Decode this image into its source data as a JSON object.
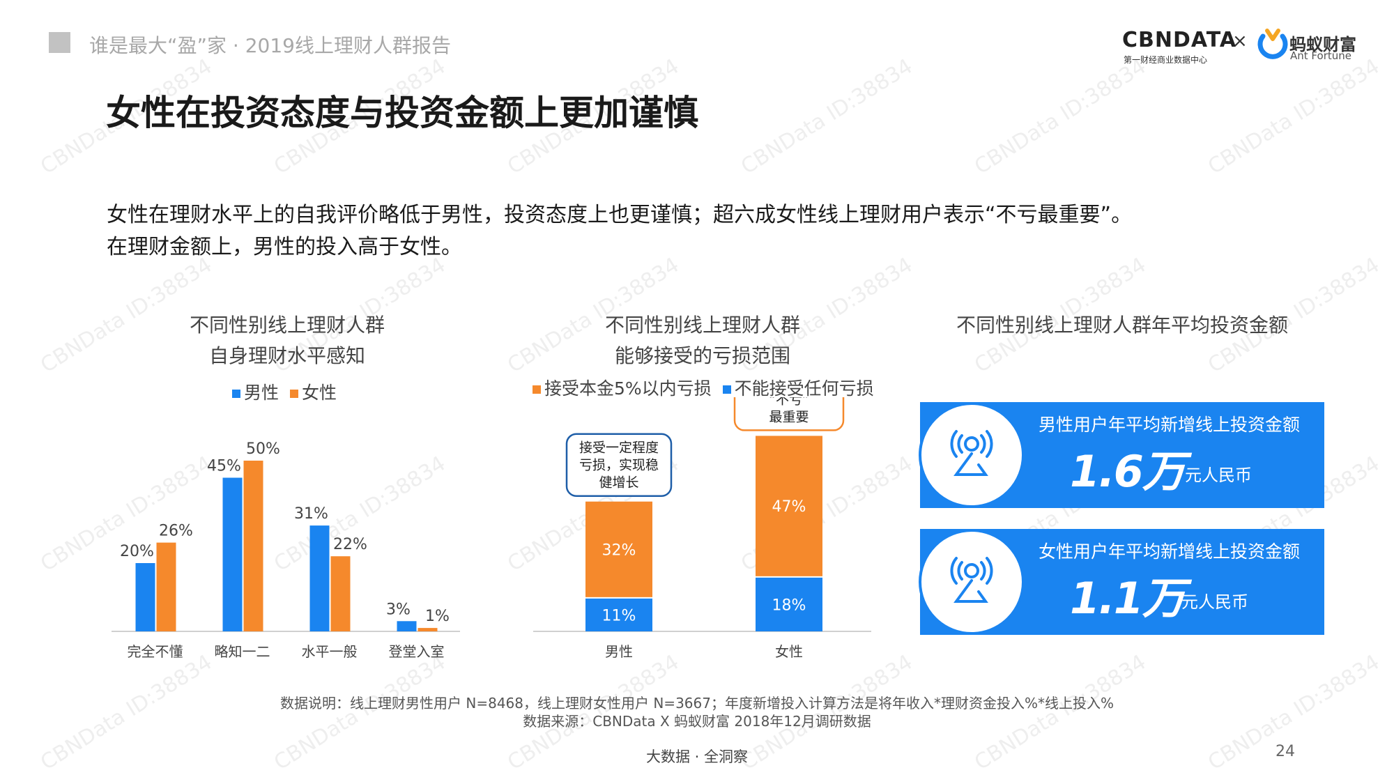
{
  "header": {
    "subtitle": "谁是最大“盈”家 · 2019线上理财人群报告",
    "title": "女性在投资态度与投资金额上更加谨慎"
  },
  "logos": {
    "cbndata": "CBNDATA",
    "cbndata_sub": "第一财经商业数据中心",
    "times": "×",
    "ant_cn": "蚂蚁财富",
    "ant_en": "Ant Fortune"
  },
  "summary": {
    "line1": "女性在理财水平上的自我评价略低于男性，投资态度上也更谨慎；超六成女性线上理财用户表示“不亏最重要”。",
    "line2": "在理财金额上，男性的投入高于女性。"
  },
  "chart_data": [
    {
      "type": "bar",
      "title_line1": "不同性别线上理财人群",
      "title_line2": "自身理财水平感知",
      "categories": [
        "完全不懂",
        "略知一二",
        "水平一般",
        "登堂入室"
      ],
      "series": [
        {
          "name": "男性",
          "values": [
            20,
            45,
            31,
            3
          ],
          "labels": [
            "20%",
            "45%",
            "31%",
            "3%"
          ],
          "color": "#1a84f0"
        },
        {
          "name": "女性",
          "values": [
            26,
            50,
            22,
            1
          ],
          "labels": [
            "26%",
            "50%",
            "22%",
            "1%"
          ],
          "color": "#f5892c"
        }
      ],
      "ylim": [
        0,
        50
      ]
    },
    {
      "type": "bar",
      "stacked": true,
      "title_line1": "不同性别线上理财人群",
      "title_line2": "能够接受的亏损范围",
      "categories": [
        "男性",
        "女性"
      ],
      "series": [
        {
          "name": "接受本金5%以内亏损",
          "values": [
            32,
            47
          ],
          "labels": [
            "32%",
            "47%"
          ],
          "color": "#f5892c"
        },
        {
          "name": "不能接受任何亏损",
          "values": [
            11,
            18
          ],
          "labels": [
            "11%",
            "18%"
          ],
          "color": "#1a84f0"
        }
      ],
      "callouts": {
        "male": [
          "接受一定程度",
          "亏损，实现稳",
          "健增长"
        ],
        "female": [
          "“不亏”",
          "最重要"
        ]
      },
      "ylim": [
        0,
        70
      ]
    }
  ],
  "invest": {
    "title": "不同性别线上理财人群年平均投资金额",
    "cards": [
      {
        "label": "男性用户年平均新增线上投资金额",
        "value": "1.6万",
        "unit": "元人民币"
      },
      {
        "label": "女性用户年平均新增线上投资金额",
        "value": "1.1万",
        "unit": "元人民币"
      }
    ],
    "icon": "broadcast-person-icon"
  },
  "footnote": {
    "line1": "数据说明：线上理财男性用户 N=8468，线上理财女性用户 N=3667；年度新增投入计算方法是将年收入*理财资金投入%*线上投入%",
    "line2": "数据来源：CBNData X 蚂蚁财富 2018年12月调研数据"
  },
  "footer": {
    "tagline": "大数据 · 全洞察",
    "page": "24"
  },
  "watermark": "CBNData ID:38834",
  "colors": {
    "blue": "#1a84f0",
    "orange": "#f5892c",
    "callout_border": "#1e5ea8",
    "callout_border_orange": "#f5892c"
  }
}
